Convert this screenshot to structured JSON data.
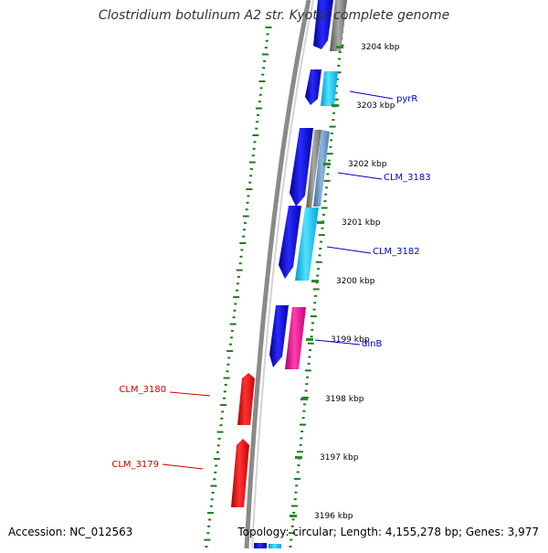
{
  "title": "Clostridium botulinum A2 str. Kyoto, complete genome",
  "footer": {
    "accession": "Accession: NC_012563",
    "summary": "Topology: circular; Length: 4,155,278 bp; Genes: 3,977"
  },
  "ticks": [
    {
      "label": "3204 kbp"
    },
    {
      "label": "3203 kbp"
    },
    {
      "label": "3202 kbp"
    },
    {
      "label": "3201 kbp"
    },
    {
      "label": "3200 kbp"
    },
    {
      "label": "3199 kbp"
    },
    {
      "label": "3198 kbp"
    },
    {
      "label": "3197 kbp"
    },
    {
      "label": "3196 kbp"
    }
  ],
  "gene_labels": [
    {
      "text": "pyrR",
      "color": "#0000cc"
    },
    {
      "text": "CLM_3183",
      "color": "#0000cc"
    },
    {
      "text": "CLM_3182",
      "color": "#0000cc"
    },
    {
      "text": "dinB",
      "color": "#0000cc"
    },
    {
      "text": "CLM_3180",
      "color": "#cc0000"
    },
    {
      "text": "CLM_3179",
      "color": "#cc0000"
    }
  ],
  "colors": {
    "backbone": "#8a8a8a",
    "forward_strand": "#1a1aee",
    "cds": "#22ccee",
    "rna": "#e0239a",
    "reverse_strand": "#ee1111",
    "gc_skew_dots": "#1f7a1f",
    "tick": "#2a8a2a"
  }
}
